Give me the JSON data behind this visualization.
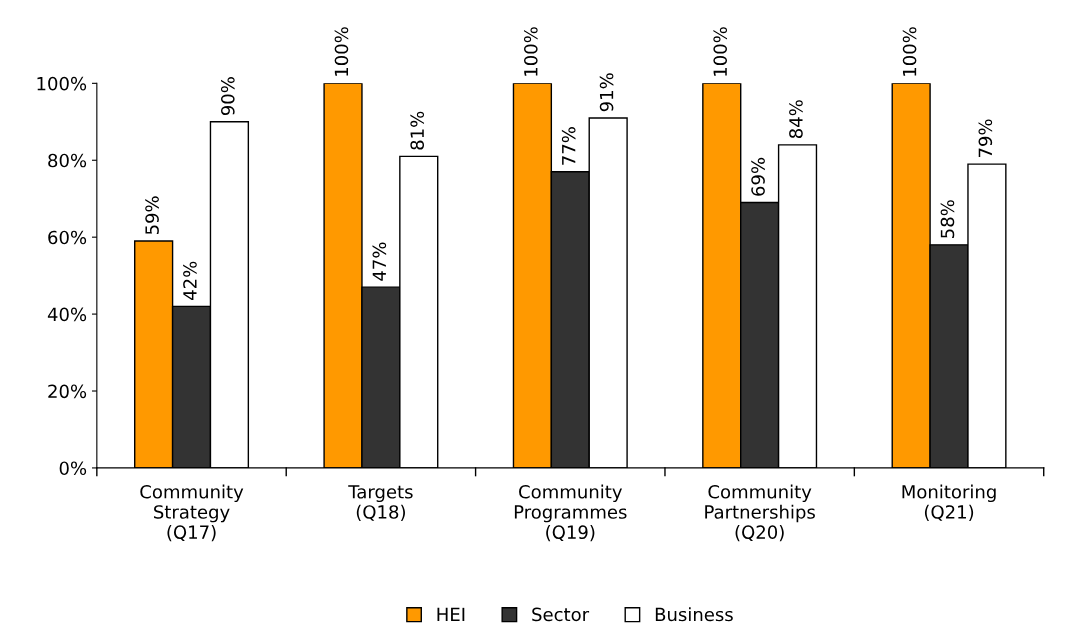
{
  "chart_data": {
    "type": "bar",
    "categories": [
      "Community\nStrategy\n(Q17)",
      "Targets\n(Q18)",
      "Community\nProgrammes\n(Q19)",
      "Community\nPartnerships\n(Q20)",
      "Monitoring\n(Q21)"
    ],
    "series": [
      {
        "name": "HEI",
        "color": "#ff9900",
        "values": [
          59,
          100,
          100,
          100,
          100
        ],
        "value_labels": [
          "59%",
          "100%",
          "100%",
          "100%",
          "100%"
        ]
      },
      {
        "name": "Sector",
        "color": "#333333",
        "values": [
          42,
          47,
          77,
          69,
          58
        ],
        "value_labels": [
          "42%",
          "47%",
          "77%",
          "69%",
          "58%"
        ]
      },
      {
        "name": "Business",
        "color": "#ffffff",
        "values": [
          90,
          81,
          91,
          84,
          79
        ],
        "value_labels": [
          "90%",
          "81%",
          "91%",
          "84%",
          "79%"
        ]
      }
    ],
    "ylim": [
      0,
      100
    ],
    "yticks": [
      {
        "value": 0,
        "label": "0%"
      },
      {
        "value": 20,
        "label": "20%"
      },
      {
        "value": 40,
        "label": "40%"
      },
      {
        "value": 60,
        "label": "60%"
      },
      {
        "value": 80,
        "label": "80%"
      },
      {
        "value": 100,
        "label": "100%"
      }
    ],
    "grid": false,
    "legend": "bottom"
  }
}
